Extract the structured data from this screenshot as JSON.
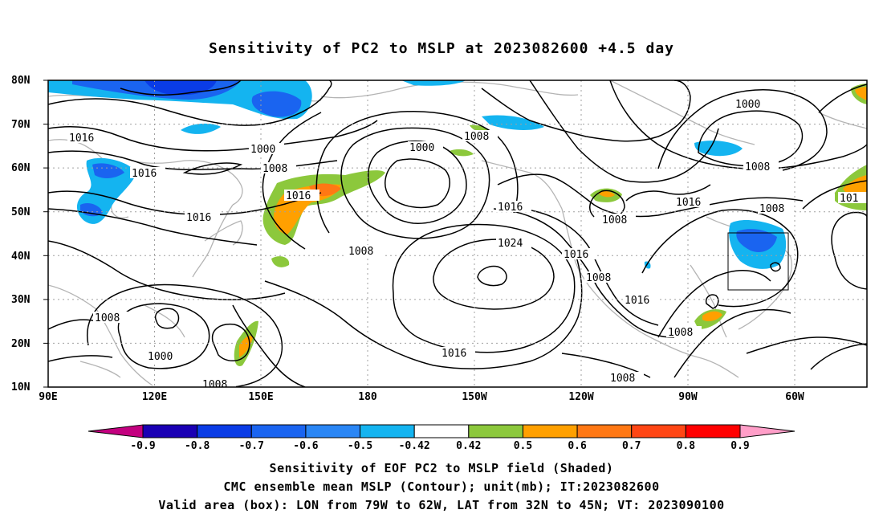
{
  "title": "Sensitivity of PC2 to MSLP at 2023082600 +4.5 day",
  "lat_ticks": [
    "80N",
    "70N",
    "60N",
    "50N",
    "40N",
    "30N",
    "20N",
    "10N"
  ],
  "lon_ticks": [
    "90E",
    "120E",
    "150E",
    "180",
    "150W",
    "120W",
    "90W",
    "60W"
  ],
  "colorbar": {
    "labels": [
      "-0.9",
      "-0.8",
      "-0.7",
      "-0.6",
      "-0.5",
      "-0.42",
      "0.42",
      "0.5",
      "0.6",
      "0.7",
      "0.8",
      "0.9"
    ],
    "colors": [
      "#c3007f",
      "#1a00b4",
      "#0a3ce6",
      "#1a64f0",
      "#2a86f5",
      "#14b4f0",
      "#ffffff",
      "#8cc83c",
      "#ffa000",
      "#ff7814",
      "#ff4614",
      "#ff0000",
      "#ff9ec8"
    ]
  },
  "contour_labels": [
    {
      "text": "1016"
    },
    {
      "text": "1000"
    },
    {
      "text": "1008"
    },
    {
      "text": "1016"
    },
    {
      "text": "1016"
    },
    {
      "text": "1016"
    },
    {
      "text": "1008"
    },
    {
      "text": "1000"
    },
    {
      "text": "1008"
    },
    {
      "text": "1016"
    },
    {
      "text": "1024"
    },
    {
      "text": "1008"
    },
    {
      "text": "1016"
    },
    {
      "text": "1016"
    },
    {
      "text": "1008"
    },
    {
      "text": "1016"
    },
    {
      "text": "1000"
    },
    {
      "text": "1008"
    },
    {
      "text": "1016"
    },
    {
      "text": "1008"
    },
    {
      "text": "1008"
    },
    {
      "text": "101"
    },
    {
      "text": "1008"
    },
    {
      "text": "1008"
    },
    {
      "text": "1000"
    },
    {
      "text": "1008"
    },
    {
      "text": "1016"
    }
  ],
  "captions": {
    "line1": "Sensitivity of EOF PC2 to MSLP field (Shaded)",
    "line2": "CMC ensemble mean MSLP (Contour); unit(mb); IT:2023082600",
    "line3": "Valid area (box): LON from 79W to 62W, LAT from 32N to 45N; VT: 2023090100"
  }
}
